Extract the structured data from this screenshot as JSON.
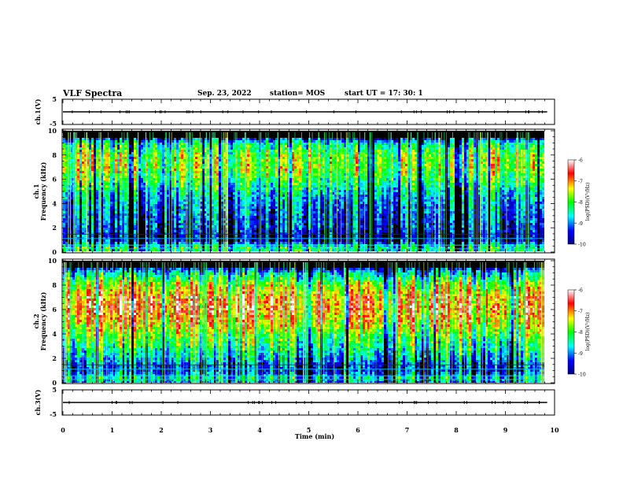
{
  "header": {
    "title": "VLF Spectra",
    "date": "Sep. 23, 2022",
    "station": "station= MOS",
    "start": "start UT = 17: 30: 1"
  },
  "panels": {
    "ch1_volt": {
      "ylabel": "ch.1(V)",
      "yticks": [
        "5",
        "-5"
      ]
    },
    "ch1_spec": {
      "ylabel_line1": "ch.1",
      "ylabel_line2": "Frequency (kHz)",
      "yticks": [
        "10",
        "8",
        "6",
        "4",
        "2",
        "0"
      ]
    },
    "ch2_spec": {
      "ylabel_line1": "ch.2",
      "ylabel_line2": "Frequency (kHz)",
      "yticks": [
        "10",
        "8",
        "6",
        "4",
        "2",
        "0"
      ]
    },
    "ch3_volt": {
      "ylabel": "ch.3(V)",
      "yticks": [
        "5",
        "-5"
      ]
    }
  },
  "xaxis": {
    "label": "Time (min)",
    "ticks": [
      "0",
      "1",
      "2",
      "3",
      "4",
      "5",
      "6",
      "7",
      "8",
      "9",
      "10"
    ]
  },
  "colorbar": {
    "label": "log(PSD)(V²/Hz)",
    "ticks": [
      "-6",
      "-7",
      "-8",
      "-9",
      "-10"
    ],
    "colors": [
      "#000080",
      "#0000ff",
      "#00ffff",
      "#00ff00",
      "#ffff00",
      "#ff0000",
      "#ffffff"
    ]
  },
  "chart_data": [
    {
      "type": "line",
      "name": "ch1_voltage",
      "ylabel": "ch.1(V)",
      "xlim": [
        0,
        10
      ],
      "ylim": [
        -5,
        5
      ],
      "x": [
        0,
        9.85
      ],
      "values": [
        0,
        0
      ]
    },
    {
      "type": "heatmap",
      "name": "ch1_spectrogram",
      "ylabel": "Frequency (kHz)",
      "xlim": [
        0,
        10
      ],
      "ylim": [
        0,
        10
      ],
      "data_extent_min": 9.85,
      "profile_freq_khz": [
        0,
        0.5,
        1,
        1.5,
        2,
        3,
        4,
        5,
        6,
        7,
        8,
        9,
        9.5,
        10
      ],
      "profile_logpsd": [
        -8.6,
        -8.3,
        -9.6,
        -9.8,
        -9.5,
        -9.3,
        -9.1,
        -8.7,
        -8.1,
        -7.7,
        -7.8,
        -8.5,
        -10,
        -10
      ],
      "clim": [
        -10,
        -6
      ]
    },
    {
      "type": "heatmap",
      "name": "ch2_spectrogram",
      "ylabel": "Frequency (kHz)",
      "xlim": [
        0,
        10
      ],
      "ylim": [
        0,
        10
      ],
      "data_extent_min": 9.85,
      "profile_freq_khz": [
        0,
        0.5,
        1,
        1.5,
        2,
        3,
        4,
        5,
        6,
        7,
        8,
        9,
        9.5,
        10
      ],
      "profile_logpsd": [
        -9.0,
        -8.6,
        -9.4,
        -9.3,
        -8.8,
        -8.3,
        -7.8,
        -7.2,
        -6.8,
        -6.9,
        -7.5,
        -8.7,
        -9.8,
        -10
      ],
      "clim": [
        -10,
        -6
      ]
    },
    {
      "type": "line",
      "name": "ch3_voltage",
      "ylabel": "ch.3(V)",
      "xlim": [
        0,
        10
      ],
      "ylim": [
        -5,
        5
      ],
      "x": [
        0,
        9.85
      ],
      "values": [
        0,
        0
      ]
    }
  ]
}
